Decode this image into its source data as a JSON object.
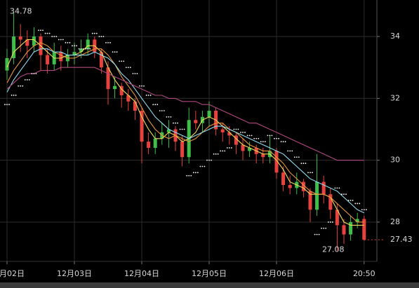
{
  "chart_data": {
    "type": "candlestick",
    "categories": [
      "月02日",
      null,
      null,
      null,
      null,
      null,
      null,
      null,
      null,
      null,
      "12月03日",
      null,
      null,
      null,
      null,
      null,
      null,
      null,
      null,
      null,
      "12月04日",
      null,
      null,
      null,
      null,
      null,
      null,
      null,
      null,
      null,
      "12月05日",
      null,
      null,
      null,
      null,
      null,
      null,
      null,
      null,
      null,
      "12月06日",
      null,
      null,
      null,
      null,
      null,
      null,
      null,
      null,
      null,
      null,
      null,
      null,
      "20:50"
    ],
    "open": [
      32.9,
      33.3,
      34.0,
      33.9,
      33.7,
      34.0,
      33.4,
      33.1,
      33.5,
      33.2,
      33.4,
      33.5,
      33.6,
      33.9,
      33.5,
      33.0,
      32.3,
      32.4,
      32.1,
      31.9,
      31.6,
      30.6,
      30.4,
      30.7,
      30.9,
      31.0,
      30.6,
      30.1,
      31.3,
      31.2,
      31.4,
      31.6,
      31.0,
      30.9,
      30.8,
      30.5,
      30.3,
      30.4,
      30.2,
      30.1,
      30.3,
      29.6,
      29.2,
      29.1,
      29.3,
      29.0,
      28.4,
      29.3,
      28.9,
      28.4,
      27.9,
      27.6,
      28.0,
      28.1
    ],
    "high": [
      33.6,
      34.78,
      34.4,
      34.2,
      34.3,
      34.1,
      33.6,
      33.8,
      33.7,
      33.6,
      33.8,
      33.9,
      34.1,
      34.0,
      33.6,
      33.2,
      32.7,
      32.5,
      32.3,
      32.0,
      31.7,
      30.9,
      30.9,
      31.2,
      31.3,
      31.1,
      30.8,
      31.7,
      31.6,
      31.6,
      31.9,
      31.7,
      31.2,
      31.1,
      30.9,
      30.7,
      30.6,
      30.5,
      30.4,
      30.8,
      30.4,
      29.8,
      29.5,
      29.6,
      29.4,
      29.1,
      30.2,
      29.5,
      29.1,
      28.6,
      28.1,
      28.2,
      28.3,
      28.2
    ],
    "low": [
      32.6,
      33.1,
      33.5,
      33.3,
      33.5,
      32.9,
      32.8,
      32.9,
      32.9,
      33.0,
      33.1,
      33.3,
      33.4,
      33.3,
      32.8,
      31.8,
      32.0,
      31.7,
      31.6,
      31.3,
      29.9,
      30.2,
      30.2,
      30.5,
      30.4,
      30.3,
      29.8,
      29.9,
      31.0,
      30.9,
      31.1,
      30.8,
      30.6,
      30.5,
      30.2,
      30.0,
      30.1,
      29.9,
      29.9,
      29.9,
      29.4,
      29.0,
      28.9,
      28.9,
      28.8,
      28.0,
      28.2,
      28.6,
      28.1,
      27.08,
      27.3,
      27.4,
      27.8,
      27.4
    ],
    "close": [
      33.3,
      34.0,
      33.9,
      33.7,
      34.0,
      33.4,
      33.1,
      33.5,
      33.2,
      33.4,
      33.5,
      33.6,
      33.9,
      33.5,
      33.0,
      32.3,
      32.4,
      32.1,
      31.9,
      31.6,
      30.6,
      30.4,
      30.7,
      30.9,
      31.0,
      30.6,
      30.1,
      31.3,
      31.2,
      31.4,
      31.6,
      31.0,
      30.9,
      30.8,
      30.5,
      30.3,
      30.4,
      30.2,
      30.1,
      30.3,
      29.6,
      29.2,
      29.1,
      29.3,
      29.0,
      28.4,
      29.3,
      28.9,
      28.4,
      27.9,
      27.6,
      28.0,
      28.1,
      27.43
    ],
    "up_color": "#3fbf4a",
    "down_color": "#e8423f",
    "series": [
      {
        "color": "#f0dc5a",
        "values": [
          33.0,
          33.5,
          33.7,
          33.9,
          33.9,
          33.7,
          33.5,
          33.3,
          33.3,
          33.4,
          33.4,
          33.5,
          33.7,
          33.7,
          33.5,
          33.0,
          32.6,
          32.3,
          32.1,
          31.9,
          31.4,
          31.0,
          30.7,
          30.7,
          30.9,
          30.8,
          30.6,
          30.7,
          30.9,
          31.3,
          31.4,
          31.3,
          31.1,
          30.9,
          30.7,
          30.5,
          30.4,
          30.3,
          30.2,
          30.2,
          30.0,
          29.7,
          29.3,
          29.2,
          29.1,
          28.9,
          28.9,
          28.9,
          28.8,
          28.4,
          28.0,
          27.9,
          27.9,
          27.9
        ]
      },
      {
        "color": "#e8963c",
        "values": [
          32.5,
          32.9,
          33.2,
          33.5,
          33.7,
          33.8,
          33.7,
          33.5,
          33.4,
          33.3,
          33.3,
          33.4,
          33.5,
          33.6,
          33.6,
          33.4,
          33.1,
          32.7,
          32.4,
          32.1,
          31.7,
          31.3,
          31.0,
          30.8,
          30.7,
          30.8,
          30.7,
          30.6,
          30.7,
          30.9,
          31.1,
          31.2,
          31.2,
          31.0,
          30.9,
          30.7,
          30.5,
          30.4,
          30.3,
          30.3,
          30.1,
          29.9,
          29.6,
          29.4,
          29.2,
          29.0,
          28.9,
          28.9,
          28.8,
          28.6,
          28.4,
          28.2,
          28.0,
          28.0
        ]
      },
      {
        "color": "#8fdcef",
        "values": [
          32.2,
          32.6,
          32.9,
          33.2,
          33.5,
          33.6,
          33.6,
          33.5,
          33.5,
          33.4,
          33.4,
          33.4,
          33.4,
          33.5,
          33.4,
          33.3,
          33.1,
          32.8,
          32.6,
          32.3,
          32.0,
          31.7,
          31.4,
          31.2,
          31.0,
          30.9,
          30.8,
          30.7,
          30.8,
          30.9,
          31.0,
          31.1,
          31.1,
          31.0,
          30.9,
          30.8,
          30.7,
          30.6,
          30.5,
          30.4,
          30.3,
          30.2,
          30.0,
          29.8,
          29.6,
          29.4,
          29.3,
          29.2,
          29.1,
          29.0,
          28.8,
          28.6,
          28.4,
          28.3
        ]
      },
      {
        "color": "#b0487f",
        "values": [
          32.3,
          32.5,
          32.7,
          32.8,
          32.8,
          32.9,
          32.9,
          32.9,
          33.0,
          33.0,
          33.0,
          33.0,
          33.0,
          33.0,
          32.9,
          32.8,
          32.7,
          32.6,
          32.5,
          32.4,
          32.3,
          32.2,
          32.1,
          32.1,
          32.0,
          32.0,
          31.9,
          31.9,
          31.9,
          31.8,
          31.8,
          31.7,
          31.6,
          31.5,
          31.4,
          31.3,
          31.2,
          31.2,
          31.1,
          31.0,
          30.9,
          30.8,
          30.7,
          30.6,
          30.5,
          30.4,
          30.3,
          30.2,
          30.1,
          30.0,
          30.0,
          30.0,
          30.0,
          30.0
        ]
      }
    ],
    "sar": {
      "color": "#ffffff",
      "values": [
        31.8,
        32.1,
        32.4,
        32.6,
        32.8,
        34.2,
        34.1,
        34.0,
        33.9,
        33.8,
        33.7,
        33.6,
        33.6,
        34.1,
        34.0,
        33.8,
        33.5,
        33.2,
        33.0,
        32.8,
        32.4,
        32.1,
        31.8,
        31.6,
        31.4,
        31.2,
        31.0,
        29.5,
        29.6,
        29.8,
        30.0,
        30.2,
        30.3,
        30.4,
        31.0,
        30.9,
        30.8,
        30.7,
        30.6,
        30.8,
        30.7,
        30.6,
        30.3,
        30.1,
        29.9,
        29.6,
        27.6,
        27.8,
        28.0,
        29.1,
        28.9,
        28.7,
        28.6,
        28.4
      ]
    },
    "high_label": 34.78,
    "low_label": 27.08,
    "last_label": 27.43,
    "ylim": [
      26.73,
      35.18
    ],
    "yticks": [
      28,
      30,
      32,
      34
    ],
    "grid": true
  }
}
